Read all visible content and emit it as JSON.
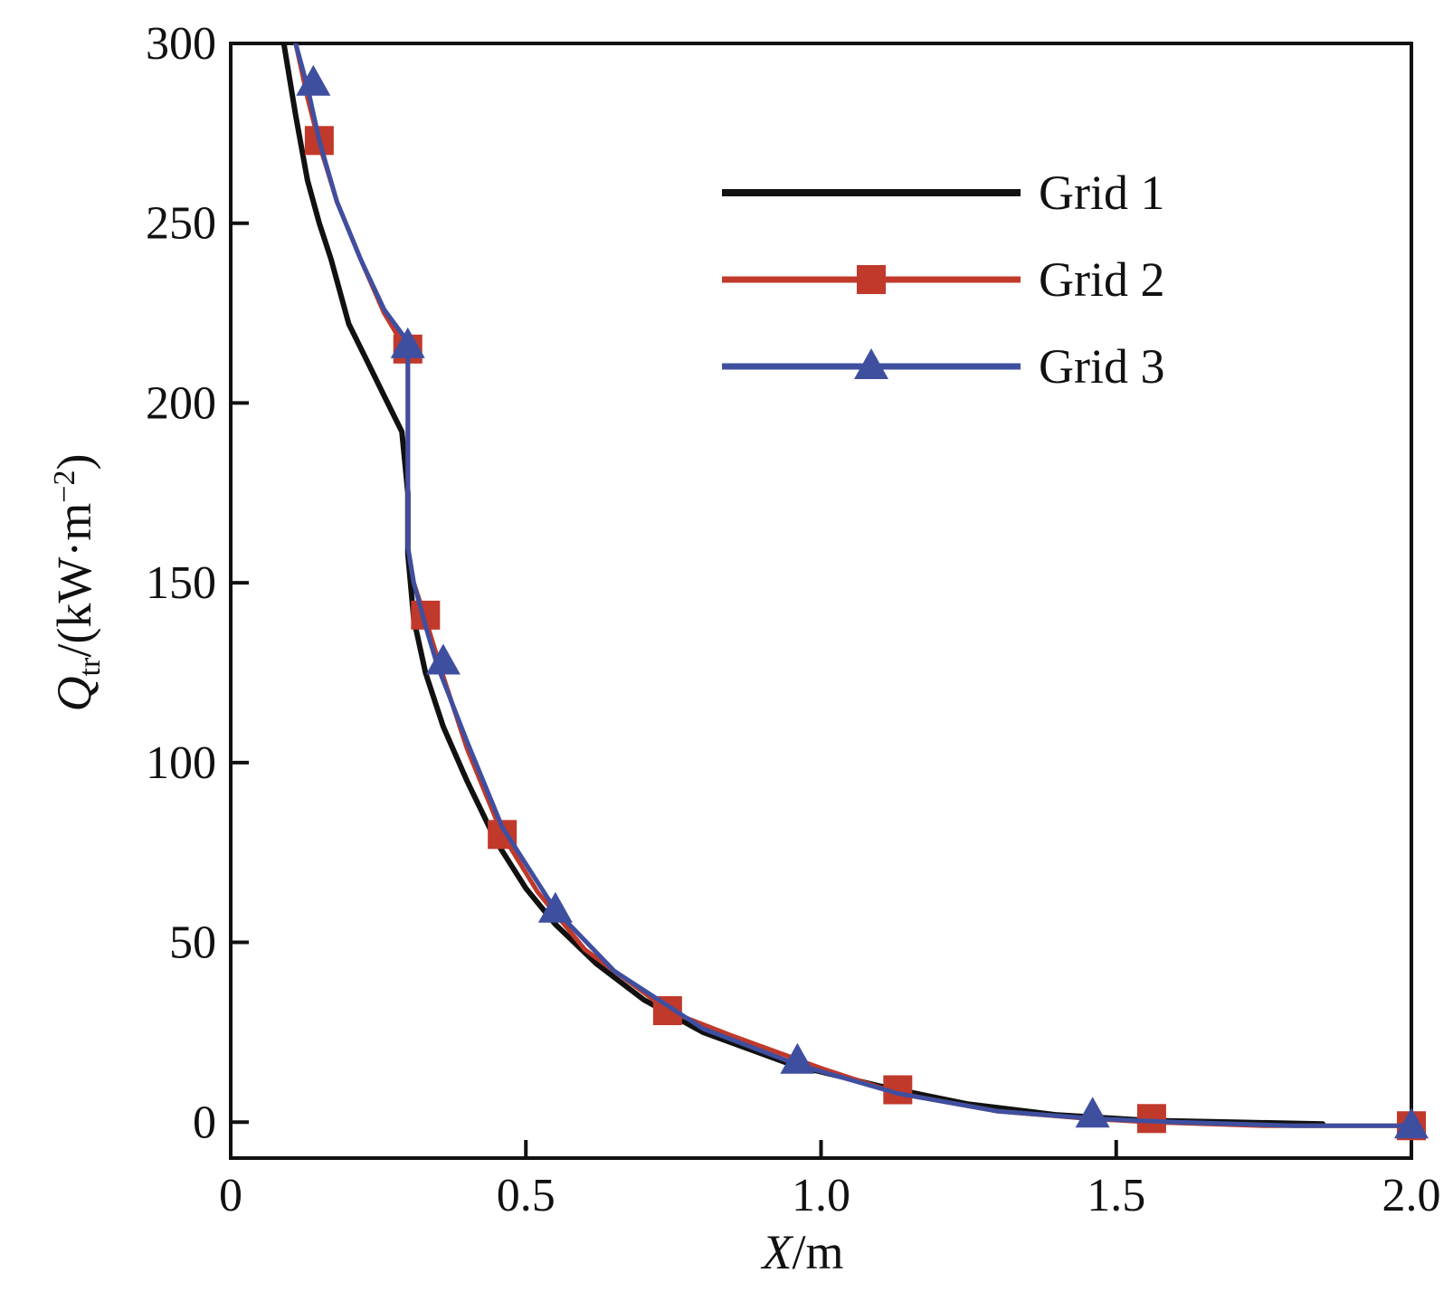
{
  "chart_data": {
    "type": "line",
    "title": "",
    "xlabel": {
      "var": "X",
      "unit": "/m"
    },
    "ylabel": {
      "var": "Q",
      "sub": "tr",
      "unit": "/(kW·m",
      "sup": "−2",
      "close": ")"
    },
    "xlim": [
      0,
      2.0
    ],
    "ylim": [
      -10,
      300
    ],
    "x_ticks": [
      0,
      0.5,
      1.0,
      1.5,
      2.0
    ],
    "x_tick_labels": [
      "0",
      "0.5",
      "1.0",
      "1.5",
      "2.0"
    ],
    "y_ticks": [
      0,
      50,
      100,
      150,
      200,
      250,
      300
    ],
    "y_tick_labels": [
      "0",
      "50",
      "100",
      "150",
      "200",
      "250",
      "300"
    ],
    "grid": false,
    "legend_position": "top-right",
    "series": [
      {
        "name": "Grid 1",
        "color": "#111111",
        "marker": "none",
        "x": [
          0.09,
          0.11,
          0.13,
          0.15,
          0.17,
          0.2,
          0.23,
          0.26,
          0.29,
          0.3,
          0.3,
          0.31,
          0.33,
          0.36,
          0.4,
          0.45,
          0.5,
          0.55,
          0.62,
          0.7,
          0.8,
          0.95,
          1.1,
          1.25,
          1.4,
          1.55,
          1.7,
          1.85
        ],
        "y": [
          300,
          280,
          262,
          250,
          240,
          222,
          212,
          202,
          192,
          175,
          158,
          140,
          125,
          110,
          95,
          78,
          65,
          55,
          44,
          34,
          25,
          16,
          10,
          5,
          2,
          0.5,
          0,
          -0.5
        ]
      },
      {
        "name": "Grid 2",
        "color": "#c0392b",
        "marker": "square",
        "x": [
          0.11,
          0.13,
          0.15,
          0.18,
          0.22,
          0.26,
          0.3,
          0.3,
          0.31,
          0.33,
          0.36,
          0.4,
          0.46,
          0.52,
          0.6,
          0.7,
          0.74,
          0.85,
          1.0,
          1.13,
          1.3,
          1.45,
          1.56,
          1.75,
          2.0
        ],
        "y": [
          300,
          285,
          272,
          256,
          240,
          225,
          214,
          160,
          150,
          140,
          124,
          104,
          80,
          64,
          48,
          36,
          31,
          24,
          15,
          8,
          3,
          1,
          0,
          -1,
          -1
        ],
        "marker_x": [
          0.15,
          0.3,
          0.33,
          0.46,
          0.74,
          1.13,
          1.56,
          2.0
        ],
        "marker_y": [
          273,
          215,
          141,
          80,
          31,
          9,
          1,
          -1
        ]
      },
      {
        "name": "Grid 3",
        "color": "#3f4fa0",
        "marker": "triangle",
        "x": [
          0.11,
          0.13,
          0.15,
          0.18,
          0.22,
          0.26,
          0.3,
          0.3,
          0.31,
          0.33,
          0.35,
          0.4,
          0.46,
          0.55,
          0.65,
          0.8,
          0.96,
          1.13,
          1.3,
          1.46,
          1.6,
          1.8,
          2.0
        ],
        "y": [
          300,
          288,
          273,
          256,
          240,
          226,
          217,
          160,
          150,
          138,
          127,
          106,
          82,
          59,
          42,
          26,
          16,
          8,
          3,
          1,
          0,
          -1,
          -1
        ],
        "marker_x": [
          0.14,
          0.3,
          0.36,
          0.55,
          0.96,
          1.46,
          2.0
        ],
        "marker_y": [
          289,
          216,
          128,
          59,
          17,
          2,
          -1
        ]
      }
    ]
  }
}
